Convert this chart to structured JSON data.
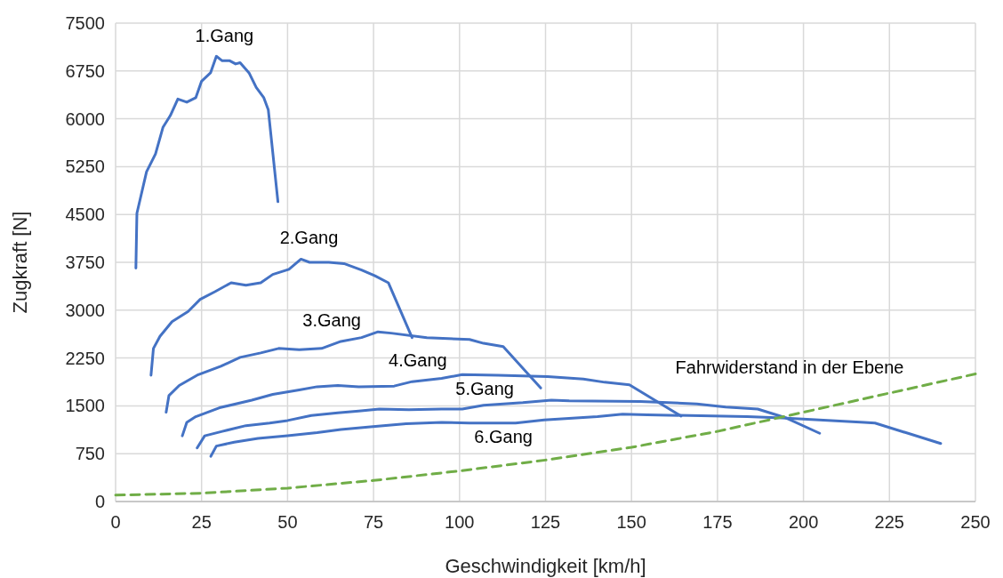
{
  "chart_data": {
    "type": "line",
    "xlabel": "Geschwindigkeit [km/h]",
    "ylabel": "Zugkraft [N]",
    "xlim": [
      0,
      250
    ],
    "xticks": [
      0,
      25,
      50,
      75,
      100,
      125,
      150,
      175,
      200,
      225,
      250
    ],
    "ylim": [
      0,
      7500
    ],
    "yticks": [
      0,
      750,
      1500,
      2250,
      3000,
      3750,
      4500,
      5250,
      6000,
      6750,
      7500
    ],
    "grid": true,
    "series": [
      {
        "name": "1.Gang",
        "color": "#4472c4",
        "x": [
          5.9,
          6.2,
          9.0,
          11.6,
          13.8,
          15.9,
          18.1,
          20.7,
          23.3,
          25,
          27.6,
          29.3,
          31,
          33.2,
          34.9,
          36.2,
          38.8,
          40.9,
          43.1,
          44.4,
          47.2
        ],
        "values": [
          3660,
          4520,
          5170,
          5450,
          5870,
          6050,
          6310,
          6260,
          6330,
          6590,
          6720,
          6980,
          6910,
          6910,
          6860,
          6880,
          6720,
          6490,
          6330,
          6140,
          4700
        ]
      },
      {
        "name": "2.Gang",
        "color": "#4472c4",
        "x": [
          10.3,
          11,
          12.9,
          16.4,
          21.1,
          24.6,
          28.9,
          33.6,
          37.9,
          42.2,
          45.7,
          50.4,
          53.9,
          56.4,
          62,
          66.4,
          71.5,
          75.4,
          79.3,
          86.2
        ],
        "values": [
          1980,
          2400,
          2590,
          2820,
          2980,
          3170,
          3290,
          3430,
          3390,
          3430,
          3560,
          3640,
          3800,
          3750,
          3750,
          3730,
          3630,
          3540,
          3430,
          2570
        ]
      },
      {
        "name": "3.Gang",
        "color": "#4472c4",
        "x": [
          14.7,
          15.5,
          18.5,
          23.7,
          30.6,
          36.2,
          42.2,
          47.4,
          53.4,
          59.9,
          65.5,
          71.5,
          76.3,
          80.1,
          90.5,
          102.9,
          107,
          112.7,
          123.6
        ],
        "values": [
          1400,
          1660,
          1820,
          1980,
          2120,
          2260,
          2330,
          2400,
          2380,
          2400,
          2510,
          2570,
          2660,
          2640,
          2570,
          2540,
          2480,
          2430,
          1780
        ]
      },
      {
        "name": "4.Gang",
        "color": "#4472c4",
        "x": [
          19.4,
          20.7,
          23.3,
          30.2,
          39.6,
          45.7,
          53.4,
          58.6,
          64.6,
          70.7,
          81,
          86.2,
          94.8,
          100.8,
          111.2,
          125.6,
          136,
          142.2,
          149.4,
          164.4
        ],
        "values": [
          1030,
          1240,
          1330,
          1470,
          1590,
          1680,
          1750,
          1800,
          1820,
          1800,
          1810,
          1880,
          1930,
          1990,
          1980,
          1960,
          1920,
          1870,
          1830,
          1340
        ]
      },
      {
        "name": "5.Gang",
        "color": "#4472c4",
        "x": [
          23.7,
          25.9,
          31,
          37.9,
          44.8,
          50,
          56.9,
          64.6,
          70.7,
          76.7,
          85.3,
          94.8,
          100.8,
          107,
          118.4,
          126.7,
          131.9,
          152.5,
          169,
          177.4,
          186.7,
          195,
          204.7
        ],
        "values": [
          840,
          1030,
          1100,
          1190,
          1230,
          1270,
          1350,
          1390,
          1420,
          1450,
          1440,
          1450,
          1450,
          1510,
          1550,
          1590,
          1580,
          1570,
          1530,
          1480,
          1450,
          1310,
          1070
        ]
      },
      {
        "name": "6.Gang",
        "color": "#4472c4",
        "x": [
          27.7,
          29.3,
          34.5,
          41.4,
          50,
          58.6,
          65.5,
          74.1,
          84.5,
          94.8,
          102.9,
          116.3,
          124.6,
          140.1,
          147.4,
          154.6,
          183.6,
          193.9,
          217.7,
          220.8,
          239.9
        ],
        "values": [
          710,
          870,
          930,
          990,
          1030,
          1080,
          1130,
          1170,
          1220,
          1240,
          1230,
          1230,
          1280,
          1330,
          1370,
          1360,
          1330,
          1310,
          1240,
          1230,
          910
        ]
      },
      {
        "name": "Fahrwiderstand in der Ebene",
        "color": "#70ad47",
        "line_style": "dashed",
        "x": [
          0,
          25,
          50,
          75,
          100,
          125,
          150,
          175,
          200,
          225,
          250
        ],
        "values": [
          100,
          130,
          210,
          330,
          480,
          650,
          850,
          1100,
          1400,
          1700,
          2000
        ]
      }
    ]
  }
}
